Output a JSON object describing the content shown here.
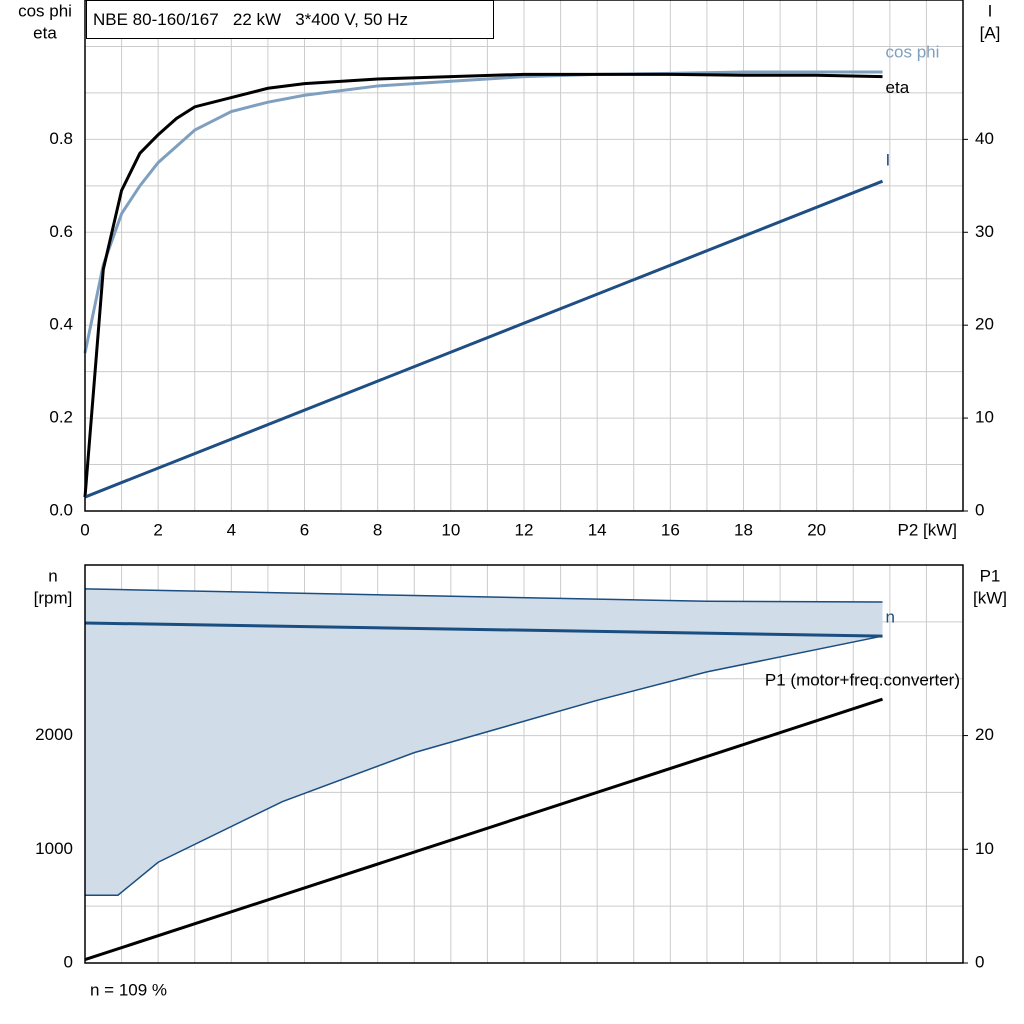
{
  "chart_data": [
    {
      "type": "line",
      "title": "NBE 80-160/167   22 kW   3*400 V, 50 Hz",
      "ylabel": [
        "cos phi",
        "eta"
      ],
      "y2label": [
        "I",
        "[A]"
      ],
      "xlabel": "P2 [kW]",
      "xlim": [
        0,
        24
      ],
      "xticks": [
        0,
        2,
        4,
        6,
        8,
        10,
        12,
        14,
        16,
        18,
        20
      ],
      "xgrid_minor": [
        1,
        3,
        5,
        7,
        9,
        11,
        13,
        15,
        17,
        19,
        21,
        22,
        23
      ],
      "ylim": [
        0,
        1.1
      ],
      "yticks": [
        {
          "value": 0,
          "label": "0.0"
        },
        0.2,
        0.4,
        0.6,
        0.8
      ],
      "ygrid_minor": [
        0.1,
        0.3,
        0.5,
        0.7,
        0.9,
        1.0
      ],
      "y2lim": [
        0,
        55
      ],
      "y2ticks": [
        0,
        10,
        20,
        30,
        40
      ],
      "grid": true,
      "show_xtick_labels": true,
      "series": [
        {
          "name": "cos phi",
          "color": "#7f9fbf",
          "x": [
            0,
            0.5,
            1,
            1.5,
            2,
            3,
            4,
            5,
            6,
            8,
            10,
            12,
            14,
            16,
            18,
            20,
            21.8
          ],
          "values": [
            0.34,
            0.53,
            0.64,
            0.7,
            0.75,
            0.82,
            0.86,
            0.88,
            0.895,
            0.915,
            0.925,
            0.935,
            0.94,
            0.942,
            0.945,
            0.945,
            0.945
          ]
        },
        {
          "name": "eta",
          "color": "#000000",
          "x": [
            0,
            0.5,
            1,
            1.5,
            2,
            2.5,
            3,
            4,
            5,
            6,
            8,
            10,
            12,
            14,
            16,
            18,
            20,
            21.8
          ],
          "values": [
            0.03,
            0.52,
            0.69,
            0.77,
            0.81,
            0.845,
            0.87,
            0.89,
            0.91,
            0.92,
            0.93,
            0.935,
            0.94,
            0.94,
            0.94,
            0.938,
            0.938,
            0.935
          ]
        },
        {
          "name": "I",
          "color": "#1f4e85",
          "axis": "y2",
          "x": [
            0,
            21.8
          ],
          "values": [
            1.5,
            35.5
          ]
        }
      ]
    },
    {
      "type": "line",
      "ylabel": [
        "n",
        "[rpm]"
      ],
      "y2label": [
        "P1",
        "[kW]"
      ],
      "annotation": "n = 109 %",
      "xlim": [
        0,
        24
      ],
      "xticks": [
        0,
        2,
        4,
        6,
        8,
        10,
        12,
        14,
        16,
        18,
        20
      ],
      "xgrid_minor": [
        1,
        3,
        5,
        7,
        9,
        11,
        13,
        15,
        17,
        19,
        21,
        22,
        23
      ],
      "ylim": [
        0,
        3500
      ],
      "yticks": [
        0,
        1000,
        2000
      ],
      "ygrid_minor": [
        500,
        1500,
        2500,
        3000
      ],
      "y2lim": [
        0,
        35
      ],
      "y2ticks": [
        0,
        10,
        20
      ],
      "grid": true,
      "show_xtick_labels": false,
      "band": {
        "color": "#d0dce8",
        "edge": "#1a4d80",
        "x": [
          0,
          0.9,
          2,
          5.4,
          9,
          14,
          17,
          21.8
        ],
        "upper": [
          3290,
          3284,
          3277,
          3255,
          3232,
          3200,
          3181,
          3175
        ],
        "lower": [
          596,
          596,
          886,
          1420,
          1850,
          2310,
          2560,
          2875
        ]
      },
      "series": [
        {
          "name": "n",
          "color": "#1a4d80",
          "x": [
            0,
            21.8
          ],
          "values": [
            2990,
            2875
          ]
        },
        {
          "name": "P1 (motor+freq.converter)",
          "color": "#000000",
          "axis": "y2",
          "x": [
            0,
            21.8
          ],
          "values": [
            0.3,
            23.2
          ]
        }
      ]
    }
  ]
}
